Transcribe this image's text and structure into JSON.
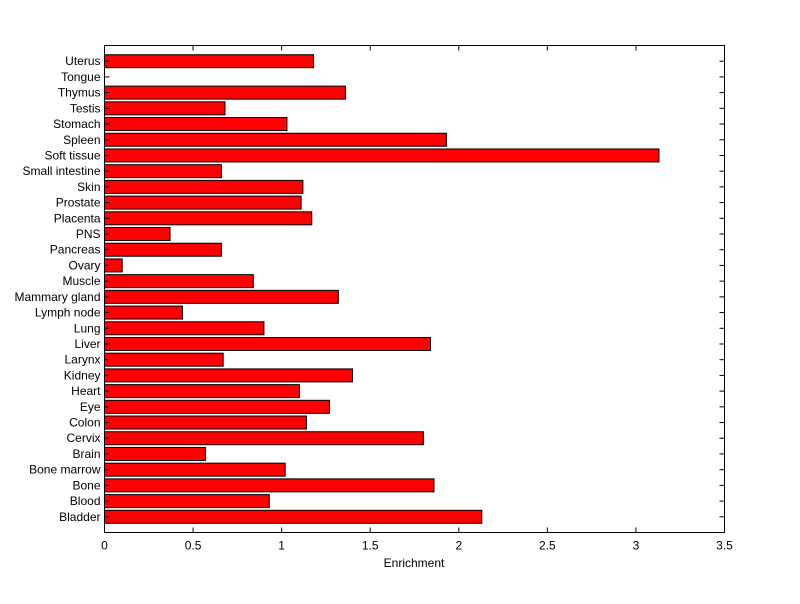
{
  "chart_data": {
    "type": "bar",
    "orientation": "horizontal",
    "title": "",
    "xlabel": "Enrichment",
    "ylabel": "",
    "xlim": [
      0,
      3.5
    ],
    "xticks": [
      "0",
      "0.5",
      "1",
      "1.5",
      "2",
      "2.5",
      "3",
      "3.5"
    ],
    "categories": [
      "Bladder",
      "Blood",
      "Bone",
      "Bone marrow",
      "Brain",
      "Cervix",
      "Colon",
      "Eye",
      "Heart",
      "Kidney",
      "Larynx",
      "Liver",
      "Lung",
      "Lymph node",
      "Mammary gland",
      "Muscle",
      "Ovary",
      "Pancreas",
      "PNS",
      "Placenta",
      "Prostate",
      "Skin",
      "Small intestine",
      "Soft tissue",
      "Spleen",
      "Stomach",
      "Testis",
      "Thymus",
      "Tongue",
      "Uterus"
    ],
    "values": [
      2.13,
      0.93,
      1.86,
      1.02,
      0.57,
      1.8,
      1.14,
      1.27,
      1.1,
      1.4,
      0.67,
      1.84,
      0.9,
      0.44,
      1.32,
      0.84,
      0.1,
      0.66,
      0.37,
      1.17,
      1.11,
      1.12,
      0.66,
      3.13,
      1.93,
      1.03,
      0.68,
      1.36,
      0,
      1.18
    ],
    "bar_color": "#ff0000",
    "grid": false
  }
}
